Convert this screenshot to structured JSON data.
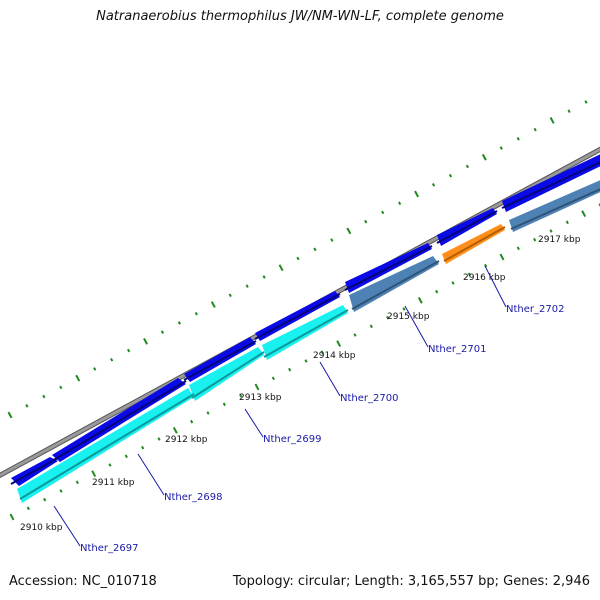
{
  "title": "Natranaerobius thermophilus JW/NM-WN-LF, complete genome",
  "footer": {
    "accession": "Accession: NC_010718",
    "summary": "Topology: circular; Length: 3,165,557 bp; Genes: 2,946"
  },
  "colors": {
    "backbone": "#8a8a8a",
    "forward_gene": "#0a0ae6",
    "reverse_gene": "#19f0f0",
    "reverse_gene_alt": "#4f82b4",
    "highlight_gene": "#ff8f1a",
    "tick": "#1f8a1f",
    "label_line": "#1a1aa6"
  },
  "scale": {
    "ticks": [
      "2910 kbp",
      "2911 kbp",
      "2912 kbp",
      "2913 kbp",
      "2914 kbp",
      "2915 kbp",
      "2916 kbp",
      "2917 kbp"
    ]
  },
  "genes": [
    {
      "name": "",
      "strand": "forward"
    },
    {
      "name": "",
      "strand": "forward"
    },
    {
      "name": "",
      "strand": "forward"
    },
    {
      "name": "",
      "strand": "forward"
    },
    {
      "name": "",
      "strand": "forward"
    },
    {
      "name": "",
      "strand": "forward"
    },
    {
      "name": "",
      "strand": "forward"
    },
    {
      "name": "Nther_2697",
      "strand": "reverse"
    },
    {
      "name": "Nther_2698",
      "strand": "reverse"
    },
    {
      "name": "Nther_2699",
      "strand": "reverse"
    },
    {
      "name": "Nther_2700",
      "strand": "reverse"
    },
    {
      "name": "Nther_2701",
      "strand": "reverse"
    },
    {
      "name": "Nther_2702",
      "strand": "reverse"
    },
    {
      "name": "",
      "strand": "reverse"
    }
  ]
}
